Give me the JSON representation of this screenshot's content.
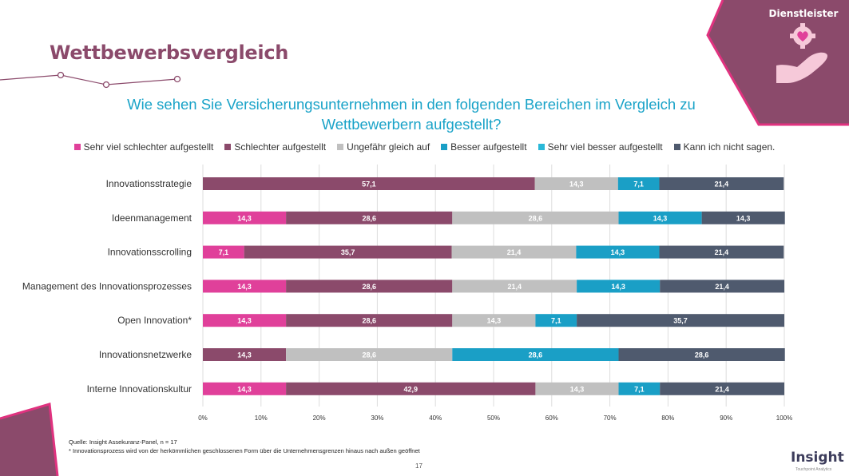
{
  "header": {
    "title": "Wettbewerbsvergleich",
    "question": "Wie sehen Sie Versicherungsunternehmen in den folgenden Bereichen im Vergleich zu Wettbewerbern aufgestellt?",
    "badge_label": "Dienstleister",
    "badge_icon": "caring-hand-icon"
  },
  "colors": {
    "title": "#8b4a6b",
    "question": "#1aa3c8",
    "badge": "#8b4a6b",
    "badge_border": "#e0327f"
  },
  "chart_data": {
    "type": "bar",
    "orientation": "horizontal",
    "stacked": true,
    "title": "Wie sehen Sie Versicherungsunternehmen in den folgenden Bereichen im Vergleich zu Wettbewerbern aufgestellt?",
    "categories": [
      "Innovationsstrategie",
      "Ideenmanagement",
      "Innovationsscrolling",
      "Management des Innovationsprozesses",
      "Open Innovation*",
      "Innovationsnetzwerke",
      "Interne Innovationskultur"
    ],
    "series": [
      {
        "name": "Sehr viel schlechter aufgestellt",
        "color": "#e0409a",
        "label_color": "#ffffff",
        "values": [
          0,
          14.3,
          7.1,
          14.3,
          14.3,
          0,
          14.3
        ]
      },
      {
        "name": "Schlechter aufgestellt",
        "color": "#8b4a6b",
        "label_color": "#ffffff",
        "values": [
          57.1,
          28.6,
          35.7,
          28.6,
          28.6,
          14.3,
          42.9
        ]
      },
      {
        "name": "Ungefähr gleich auf",
        "color": "#c0c0c0",
        "label_color": "#ffffff",
        "values": [
          14.3,
          28.6,
          21.4,
          21.4,
          14.3,
          28.6,
          14.3
        ]
      },
      {
        "name": "Besser aufgestellt",
        "color": "#1a9fc6",
        "label_color": "#ffffff",
        "values": [
          7.1,
          14.3,
          14.3,
          14.3,
          7.1,
          28.6,
          7.1
        ]
      },
      {
        "name": "Sehr viel besser aufgestellt",
        "color": "#2ab8d8",
        "label_color": "#ffffff",
        "values": [
          0,
          0,
          0,
          0,
          0,
          0,
          0
        ]
      },
      {
        "name": "Kann ich nicht sagen.",
        "color": "#4f5a6e",
        "label_color": "#ffffff",
        "values": [
          21.4,
          14.3,
          21.4,
          21.4,
          35.7,
          28.6,
          21.4
        ]
      }
    ],
    "xlim": [
      0,
      100
    ],
    "xticks": [
      "0%",
      "10%",
      "20%",
      "30%",
      "40%",
      "50%",
      "60%",
      "70%",
      "80%",
      "90%",
      "100%"
    ],
    "grid": true,
    "legend": "top"
  },
  "footer": {
    "source": "Quelle: Insight Assekuranz-Panel, n = 17",
    "note": "* Innovationsprozess wird von der herkömmlichen geschlossenen Form über die Unternehmensgrenzen hinaus nach außen geöffnet",
    "page": "17",
    "logo": "Insight",
    "logo_sub": "Touchpoint Analytics"
  }
}
